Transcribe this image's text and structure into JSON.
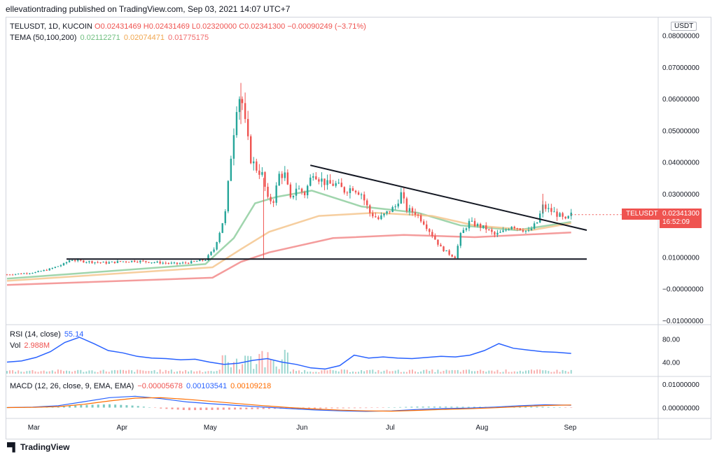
{
  "header": {
    "published": "ellevationtrading published on TradingView.com, Sep 03, 2021 14:07 UTC+7"
  },
  "main_legend": {
    "symbol": "TELUSDT, 1D, KUCOIN",
    "open": "O0.02431469",
    "high": "H0.02431469",
    "low": "L0.02320000",
    "close": "C0.02341300",
    "change": "−0.00090249 (−3.71%)"
  },
  "tema_legend": {
    "label": "TEMA (50,100,200)",
    "v1": "0.02112271",
    "v2": "0.02074471",
    "v3": "0.01775175"
  },
  "currency_badge": "USDT",
  "price_badge": {
    "symbol": "TELUSDT",
    "price": "0.02341300",
    "countdown": "16:52:09"
  },
  "rsi_legend": {
    "label": "RSI (14, close)",
    "value": "55.14"
  },
  "vol_legend": {
    "label": "Vol",
    "value": "2.988M"
  },
  "macd_legend": {
    "label": "MACD (12, 26, close, 9, EMA, EMA)",
    "v1": "−0.00005678",
    "v2": "0.00103541",
    "v3": "0.00109218"
  },
  "footer": {
    "brand": "TradingView"
  },
  "colors": {
    "up": "#26a69a",
    "down": "#ef5350",
    "tema50": "#8fce9f",
    "tema100": "#f5c58e",
    "tema200": "#f28b8b",
    "rsi": "#2962ff",
    "macd": "#2962ff",
    "signal": "#ff6d00",
    "trendline": "#131722"
  },
  "chart_data": [
    {
      "type": "candlestick",
      "title": "",
      "x_ticks": [
        "Mar",
        "Apr",
        "May",
        "Jun",
        "Jul",
        "Aug",
        "Sep"
      ],
      "y_ticks": [
        "0.08000000",
        "0.07000000",
        "0.06000000",
        "0.05000000",
        "0.04000000",
        "0.03000000",
        "0.02000000",
        "0.01000000",
        "−0.00000000",
        "−0.01000000"
      ],
      "ylim": [
        -0.01,
        0.085
      ],
      "close_series": [
        [
          0,
          0.0045
        ],
        [
          10,
          0.0048
        ],
        [
          20,
          0.0052
        ],
        [
          30,
          0.0062
        ],
        [
          40,
          0.0078
        ],
        [
          45,
          0.0093
        ],
        [
          50,
          0.0088
        ],
        [
          60,
          0.0085
        ],
        [
          70,
          0.0082
        ],
        [
          80,
          0.0086
        ],
        [
          90,
          0.0088
        ],
        [
          100,
          0.0085
        ],
        [
          110,
          0.0082
        ],
        [
          120,
          0.0079
        ],
        [
          130,
          0.0084
        ],
        [
          140,
          0.0092
        ],
        [
          146,
          0.0125
        ],
        [
          150,
          0.018
        ],
        [
          154,
          0.024
        ],
        [
          158,
          0.042
        ],
        [
          162,
          0.058
        ],
        [
          165,
          0.062
        ],
        [
          168,
          0.052
        ],
        [
          172,
          0.041
        ],
        [
          176,
          0.038
        ],
        [
          180,
          0.036
        ],
        [
          184,
          0.028
        ],
        [
          188,
          0.028
        ],
        [
          192,
          0.036
        ],
        [
          196,
          0.036
        ],
        [
          200,
          0.028
        ],
        [
          204,
          0.032
        ],
        [
          210,
          0.03
        ],
        [
          216,
          0.037
        ],
        [
          220,
          0.035
        ],
        [
          226,
          0.033
        ],
        [
          232,
          0.033
        ],
        [
          238,
          0.031
        ],
        [
          244,
          0.032
        ],
        [
          250,
          0.03
        ],
        [
          256,
          0.024
        ],
        [
          262,
          0.022
        ],
        [
          268,
          0.024
        ],
        [
          274,
          0.026
        ],
        [
          278,
          0.03
        ],
        [
          282,
          0.025
        ],
        [
          288,
          0.024
        ],
        [
          294,
          0.021
        ],
        [
          300,
          0.017
        ],
        [
          306,
          0.013
        ],
        [
          312,
          0.011
        ],
        [
          316,
          0.01
        ],
        [
          320,
          0.017
        ],
        [
          326,
          0.021
        ],
        [
          332,
          0.02
        ],
        [
          338,
          0.019
        ],
        [
          344,
          0.017
        ],
        [
          350,
          0.018
        ],
        [
          356,
          0.02
        ],
        [
          362,
          0.019
        ],
        [
          368,
          0.018
        ],
        [
          374,
          0.021
        ],
        [
          378,
          0.026
        ],
        [
          382,
          0.025
        ],
        [
          386,
          0.024
        ],
        [
          390,
          0.023
        ],
        [
          394,
          0.0215
        ],
        [
          398,
          0.0234
        ]
      ],
      "triangle_upper": [
        [
          214,
          0.039
        ],
        [
          409,
          0.0185
        ]
      ],
      "triangle_lower": [
        [
          42,
          0.0094
        ],
        [
          409,
          0.0094
        ]
      ],
      "tema_lines": [
        {
          "points": [
            [
              0,
              0.0032
            ],
            [
              140,
              0.0078
            ],
            [
              160,
              0.016
            ],
            [
              175,
              0.027
            ],
            [
              190,
              0.029
            ],
            [
              215,
              0.031
            ],
            [
              250,
              0.026
            ],
            [
              290,
              0.024
            ],
            [
              320,
              0.02
            ],
            [
              360,
              0.0185
            ],
            [
              398,
              0.0211
            ]
          ]
        },
        {
          "points": [
            [
              0,
              0.0025
            ],
            [
              145,
              0.0068
            ],
            [
              165,
              0.0125
            ],
            [
              185,
              0.018
            ],
            [
              220,
              0.023
            ],
            [
              260,
              0.024
            ],
            [
              300,
              0.023
            ],
            [
              330,
              0.02
            ],
            [
              370,
              0.0185
            ],
            [
              398,
              0.0207
            ]
          ]
        },
        {
          "points": [
            [
              0,
              0.0012
            ],
            [
              145,
              0.0035
            ],
            [
              165,
              0.0085
            ],
            [
              185,
              0.0115
            ],
            [
              230,
              0.016
            ],
            [
              280,
              0.017
            ],
            [
              330,
              0.0163
            ],
            [
              398,
              0.0178
            ]
          ]
        }
      ]
    },
    {
      "type": "line",
      "title": "",
      "series": [
        {
          "name": "RSI (14, close)",
          "values": [
            40,
            42,
            48,
            58,
            74,
            83,
            72,
            60,
            56,
            50,
            47,
            46,
            44,
            45,
            40,
            36,
            38,
            43,
            46,
            40,
            36,
            30,
            28,
            34,
            52,
            47,
            49,
            47,
            46,
            48,
            50,
            49,
            52,
            60,
            72,
            64,
            61,
            58,
            57,
            55
          ]
        }
      ],
      "y_ticks": [
        "80.00",
        "40.00"
      ],
      "ylim": [
        20,
        100
      ]
    },
    {
      "type": "line",
      "title": "",
      "series": [
        {
          "name": "MACD",
          "values": [
            0,
            0.0002,
            0.0008,
            0.0025,
            0.0042,
            0.0048,
            0.0038,
            0.0024,
            0.0016,
            0.0009,
            0.0002,
            -0.0004,
            -0.001,
            -0.0014,
            -0.0016,
            -0.0014,
            -0.0008,
            -0.0004,
            -0.0002,
            0.0002,
            0.0008,
            0.0012,
            0.001
          ]
        },
        {
          "name": "Signal",
          "values": [
            0,
            0.0001,
            0.0004,
            0.0014,
            0.0028,
            0.004,
            0.0042,
            0.0035,
            0.0026,
            0.0017,
            0.0008,
            0.0,
            -0.0006,
            -0.0011,
            -0.0014,
            -0.0015,
            -0.0012,
            -0.0008,
            -0.0005,
            -0.0001,
            0.0004,
            0.0009,
            0.0011
          ]
        }
      ],
      "y_ticks": [
        "0.01000000",
        "0.00000000"
      ],
      "ylim": [
        -0.004,
        0.012
      ]
    }
  ]
}
